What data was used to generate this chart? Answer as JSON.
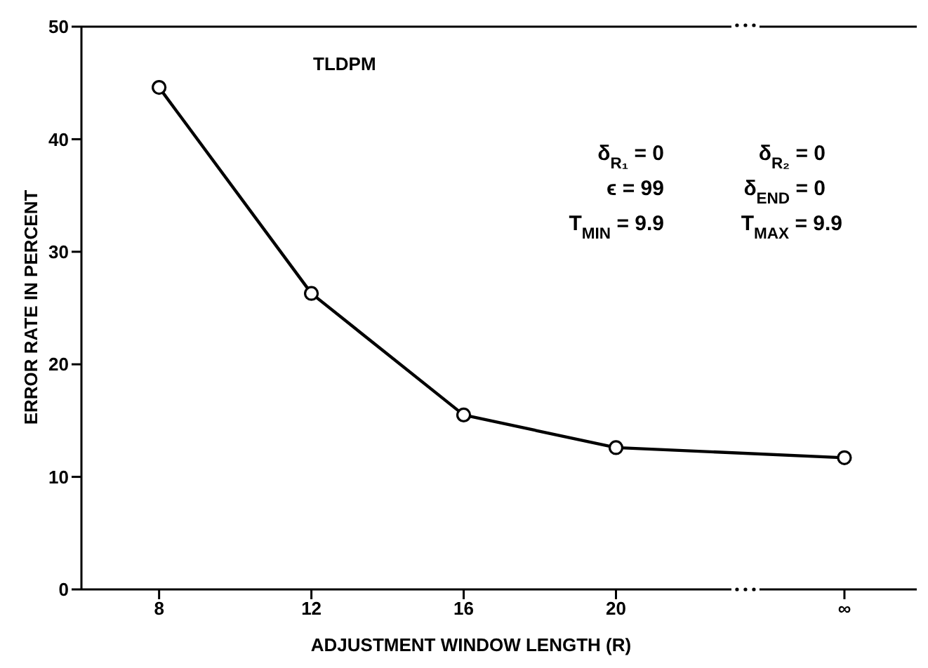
{
  "chart_data": {
    "type": "line",
    "xlabel": "ADJUSTMENT WINDOW LENGTH (R)",
    "ylabel": "ERROR RATE IN PERCENT",
    "categories": [
      "8",
      null,
      "12",
      null,
      "16",
      null,
      "20",
      null,
      null,
      "∞"
    ],
    "series": [
      {
        "color": "#000000",
        "values": [
          44.6,
          null,
          26.3,
          null,
          15.5,
          null,
          12.6,
          null,
          null,
          11.7
        ]
      }
    ],
    "ylim": [
      0,
      50
    ],
    "yticks": [
      0,
      10,
      20,
      30,
      40,
      50
    ],
    "marker": "circle",
    "line_style": "solid",
    "annotations": [
      "TLDPM",
      "δ$_{R₁}$ = 0",
      "δ$_{R₂}$ = 0",
      "ϵ = 99",
      "δ$_{END}$ = 0",
      "T$_{MIN}$ = 9.9",
      "T$_{MAX}$ = 9.9"
    ]
  }
}
